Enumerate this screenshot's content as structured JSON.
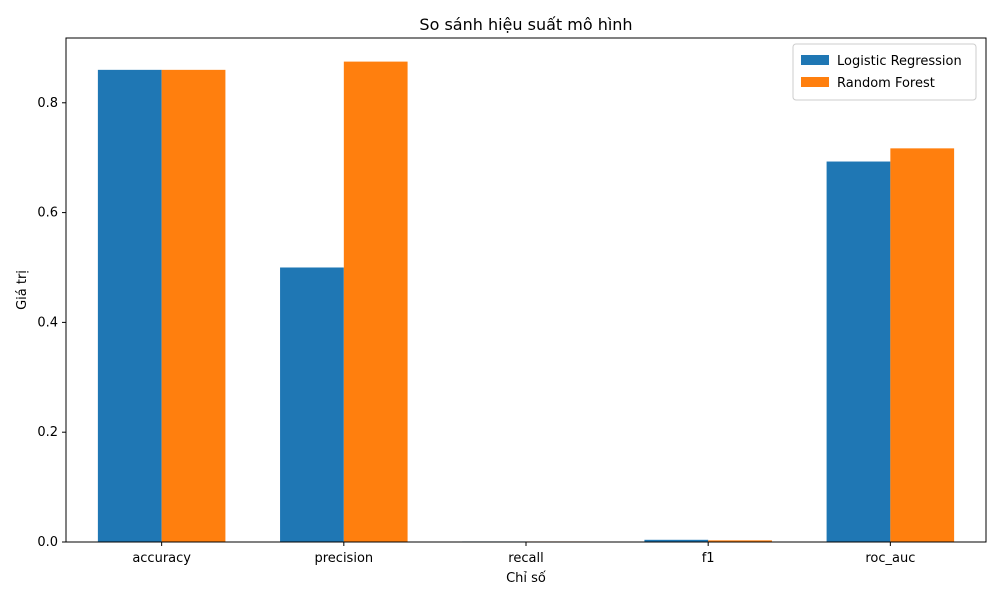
{
  "chart_data": {
    "type": "bar",
    "title": "So sánh hiệu suất mô hình",
    "xlabel": "Chỉ số",
    "ylabel": "Giá trị",
    "categories": [
      "accuracy",
      "precision",
      "recall",
      "f1",
      "roc_auc"
    ],
    "series": [
      {
        "name": "Logistic Regression",
        "color": "#1f77b4",
        "values": [
          0.86,
          0.5,
          0.001,
          0.004,
          0.693
        ]
      },
      {
        "name": "Random Forest",
        "color": "#ff7f0e",
        "values": [
          0.86,
          0.875,
          0.001,
          0.003,
          0.717
        ]
      }
    ],
    "ylim": [
      0,
      0.918
    ],
    "yticks": [
      0.0,
      0.2,
      0.4,
      0.6,
      0.8
    ],
    "ytick_labels": [
      "0.0",
      "0.2",
      "0.4",
      "0.6",
      "0.8"
    ],
    "legend_position": "top-right",
    "grid": false
  }
}
